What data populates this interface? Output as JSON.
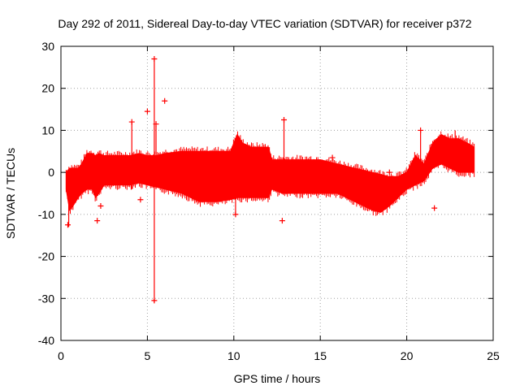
{
  "chart_data": {
    "type": "scatter",
    "title": "Day 292 of 2011, Sidereal Day-to-day VTEC variation (SDTVAR) for receiver p372",
    "xlabel": "GPS time / hours",
    "ylabel": "SDTVAR / TECUs",
    "xlim": [
      0,
      25
    ],
    "ylim": [
      -40,
      30
    ],
    "xticks": [
      0,
      5,
      10,
      15,
      20,
      25
    ],
    "yticks": [
      -40,
      -30,
      -20,
      -10,
      0,
      10,
      20,
      30
    ],
    "xtick_labels": [
      "0",
      "5",
      "10",
      "15",
      "20",
      "25"
    ],
    "ytick_labels": [
      "-40",
      "-30",
      "-20",
      "-10",
      "0",
      "10",
      "20",
      "30"
    ],
    "grid": true,
    "marker": "+",
    "color": "#ff0000",
    "series": [
      {
        "name": "p372",
        "band": [
          {
            "x": 0.3,
            "lo": -4,
            "hi": 0
          },
          {
            "x": 0.5,
            "lo": -9,
            "hi": 1
          },
          {
            "x": 0.7,
            "lo": -8,
            "hi": 1
          },
          {
            "x": 1.0,
            "lo": -6,
            "hi": 1
          },
          {
            "x": 1.2,
            "lo": -5,
            "hi": 2
          },
          {
            "x": 1.5,
            "lo": -4,
            "hi": 4.5
          },
          {
            "x": 1.8,
            "lo": -4,
            "hi": 4.5
          },
          {
            "x": 2.0,
            "lo": -6,
            "hi": 4
          },
          {
            "x": 2.2,
            "lo": -5,
            "hi": 4.5
          },
          {
            "x": 2.5,
            "lo": -3,
            "hi": 4
          },
          {
            "x": 3.0,
            "lo": -3,
            "hi": 4
          },
          {
            "x": 3.5,
            "lo": -3,
            "hi": 4
          },
          {
            "x": 4.0,
            "lo": -3,
            "hi": 4
          },
          {
            "x": 4.5,
            "lo": -2.5,
            "hi": 4.5
          },
          {
            "x": 5.0,
            "lo": -3,
            "hi": 4
          },
          {
            "x": 5.5,
            "lo": -3.5,
            "hi": 4
          },
          {
            "x": 6.0,
            "lo": -4,
            "hi": 4.5
          },
          {
            "x": 7.0,
            "lo": -5,
            "hi": 5
          },
          {
            "x": 7.5,
            "lo": -6,
            "hi": 5
          },
          {
            "x": 8.0,
            "lo": -7,
            "hi": 5
          },
          {
            "x": 9.0,
            "lo": -7,
            "hi": 5
          },
          {
            "x": 9.8,
            "lo": -6.5,
            "hi": 5
          },
          {
            "x": 10.2,
            "lo": -6,
            "hi": 9
          },
          {
            "x": 10.5,
            "lo": -6,
            "hi": 7
          },
          {
            "x": 11.0,
            "lo": -6,
            "hi": 6
          },
          {
            "x": 11.5,
            "lo": -6,
            "hi": 6
          },
          {
            "x": 12.0,
            "lo": -6,
            "hi": 6
          },
          {
            "x": 12.2,
            "lo": -4,
            "hi": 3
          },
          {
            "x": 12.8,
            "lo": -5,
            "hi": 3
          },
          {
            "x": 13.0,
            "lo": -5,
            "hi": 3
          },
          {
            "x": 14.0,
            "lo": -5,
            "hi": 3
          },
          {
            "x": 15.0,
            "lo": -5,
            "hi": 3
          },
          {
            "x": 16.0,
            "lo": -5,
            "hi": 2
          },
          {
            "x": 17.0,
            "lo": -7,
            "hi": 1
          },
          {
            "x": 18.0,
            "lo": -9,
            "hi": 0
          },
          {
            "x": 18.5,
            "lo": -9.5,
            "hi": -0.5
          },
          {
            "x": 19.0,
            "lo": -8,
            "hi": -1
          },
          {
            "x": 19.5,
            "lo": -6,
            "hi": -1
          },
          {
            "x": 20.0,
            "lo": -4,
            "hi": 0
          },
          {
            "x": 20.5,
            "lo": -3,
            "hi": 4
          },
          {
            "x": 21.0,
            "lo": -2,
            "hi": 2
          },
          {
            "x": 21.5,
            "lo": 1,
            "hi": 7
          },
          {
            "x": 22.0,
            "lo": 2,
            "hi": 9
          },
          {
            "x": 22.5,
            "lo": 1,
            "hi": 8
          },
          {
            "x": 23.0,
            "lo": 0,
            "hi": 8
          },
          {
            "x": 23.5,
            "lo": 0,
            "hi": 7
          },
          {
            "x": 23.9,
            "lo": 0,
            "hi": 6
          }
        ],
        "spikes": [
          {
            "x": 0.45,
            "lo": -13,
            "hi": 0
          },
          {
            "x": 4.1,
            "lo": -4,
            "hi": 12
          },
          {
            "x": 5.4,
            "lo": -31,
            "hi": 27
          },
          {
            "x": 5.5,
            "lo": -4,
            "hi": 11
          },
          {
            "x": 10.1,
            "lo": -10,
            "hi": 7
          },
          {
            "x": 12.9,
            "lo": -5,
            "hi": 12.5
          },
          {
            "x": 20.8,
            "lo": -2,
            "hi": 10
          },
          {
            "x": 22.8,
            "lo": 1,
            "hi": 10
          }
        ],
        "points": [
          {
            "x": 0.4,
            "y": -12.5
          },
          {
            "x": 2.1,
            "y": -11.5
          },
          {
            "x": 2.3,
            "y": -8
          },
          {
            "x": 4.1,
            "y": 12
          },
          {
            "x": 4.6,
            "y": -6.5
          },
          {
            "x": 5.0,
            "y": 14.5
          },
          {
            "x": 5.4,
            "y": 27
          },
          {
            "x": 5.4,
            "y": -30.5
          },
          {
            "x": 5.5,
            "y": 11.5
          },
          {
            "x": 6.0,
            "y": 17
          },
          {
            "x": 10.1,
            "y": -10
          },
          {
            "x": 12.8,
            "y": -11.5
          },
          {
            "x": 12.9,
            "y": 12.5
          },
          {
            "x": 15.7,
            "y": 3.5
          },
          {
            "x": 19.0,
            "y": 0
          },
          {
            "x": 20.8,
            "y": 10
          },
          {
            "x": 21.6,
            "y": -8.5
          }
        ]
      }
    ]
  }
}
